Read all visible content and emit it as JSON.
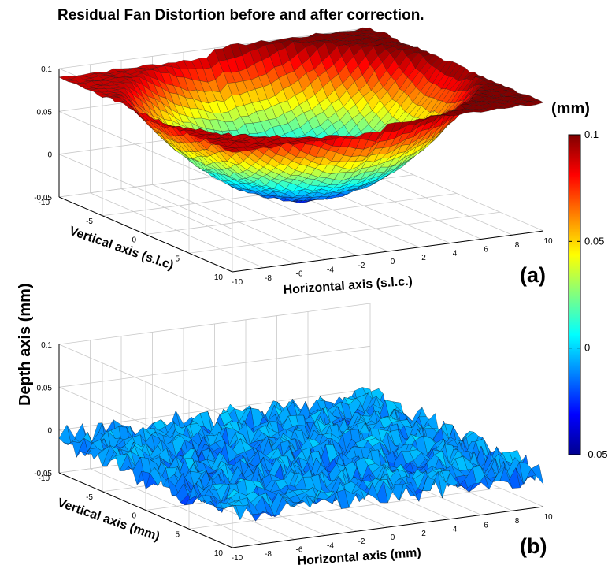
{
  "title": "Residual Fan Distortion before and after correction.",
  "shared_zlabel": "Depth axis (mm)",
  "colorbar": {
    "unit": "(mm)",
    "range": [
      -0.05,
      0.1
    ],
    "tick_labels": [
      "0.1",
      "0.05",
      "0",
      "-0.05"
    ],
    "colormap": "jet",
    "colors": [
      "#00008f",
      "#0000ff",
      "#0080ff",
      "#00ffff",
      "#80ff80",
      "#ffff00",
      "#ff8000",
      "#ff0000",
      "#800000"
    ]
  },
  "chart_data": [
    {
      "type": "surface",
      "panel_label": "(a)",
      "xlabel": "Horizontal axis (s.l.c.)",
      "ylabel": "Vertical axis (s.l.c)",
      "x_ticks": [
        "-10",
        "-8",
        "-6",
        "-4",
        "-2",
        "0",
        "2",
        "4",
        "6",
        "8",
        "10"
      ],
      "y_ticks": [
        "-10",
        "-5",
        "0",
        "5",
        "10"
      ],
      "z_ticks": [
        "0.1",
        "0.05",
        "0",
        "-0.05"
      ],
      "xlim": [
        -10,
        10
      ],
      "ylim": [
        -10,
        10
      ],
      "zlim": [
        -0.05,
        0.1
      ],
      "grid": true,
      "surface_shape": "bowl",
      "z_min": -0.03,
      "z_max_left_edge": 0.09,
      "z_max_right_edge": 0.1
    },
    {
      "type": "surface",
      "panel_label": "(b)",
      "xlabel": "Horizontal axis (mm)",
      "ylabel": "Vertical axis (mm)",
      "x_ticks": [
        "-10",
        "-8",
        "-6",
        "-4",
        "-2",
        "0",
        "2",
        "4",
        "6",
        "8",
        "10"
      ],
      "y_ticks": [
        "-10",
        "-5",
        "0",
        "5",
        "10"
      ],
      "z_ticks": [
        "0.1",
        "0.05",
        "0",
        "-0.05"
      ],
      "xlim": [
        -10,
        10
      ],
      "ylim": [
        -10,
        10
      ],
      "zlim": [
        -0.05,
        0.1
      ],
      "grid": true,
      "surface_shape": "flat-noisy",
      "z_mean": -0.01,
      "z_noise": 0.015
    }
  ]
}
